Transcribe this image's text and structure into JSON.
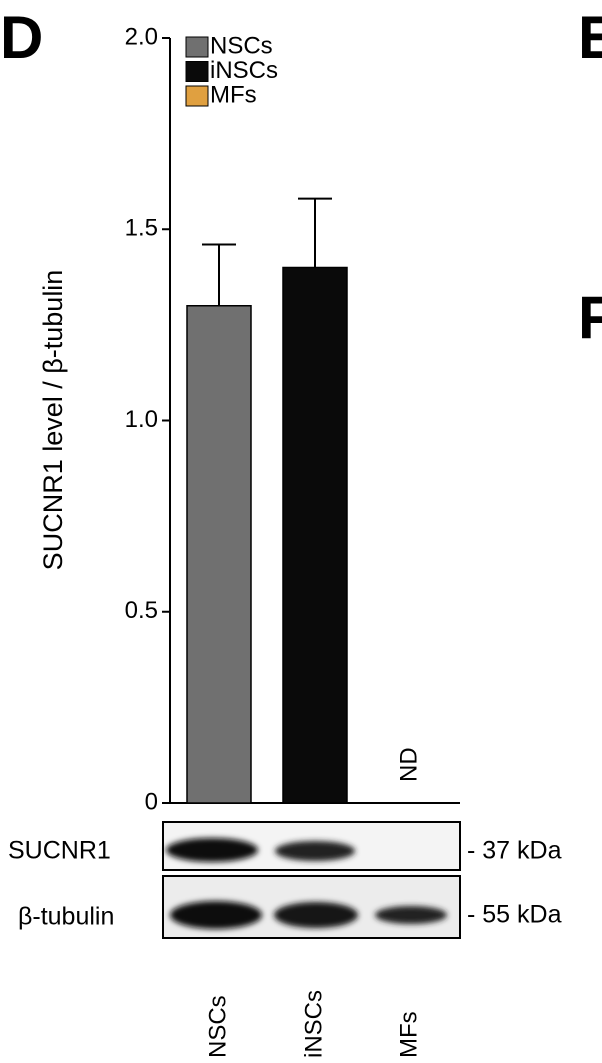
{
  "panel_label": "D",
  "other_panels": [
    "E",
    "F"
  ],
  "chart_data": {
    "type": "bar",
    "ylabel": "SUCNR1 level / β-tubulin",
    "categories": [
      "NSCs",
      "iNSCs",
      "MFs"
    ],
    "values": [
      1.3,
      1.4,
      null
    ],
    "errors": [
      0.16,
      0.18,
      null
    ],
    "annotation": "ND",
    "colors": [
      "#707070",
      "#0a0a0a",
      "#e0a040"
    ],
    "legend": [
      "NSCs",
      "iNSCs",
      "MFs"
    ],
    "ylim": [
      0,
      2
    ],
    "yticks": [
      0,
      {
        "value": 0.5,
        "label": "0.5"
      },
      {
        "value": 1,
        "label": "1.0"
      },
      {
        "value": 1.5,
        "label": "1.5"
      },
      {
        "value": 2,
        "label": "2.0"
      }
    ]
  },
  "blot": {
    "rows": [
      {
        "label": "SUCNR1",
        "size": "- 37 kDa"
      },
      {
        "label": "β-tubulin",
        "size": "- 55 kDa"
      }
    ]
  }
}
